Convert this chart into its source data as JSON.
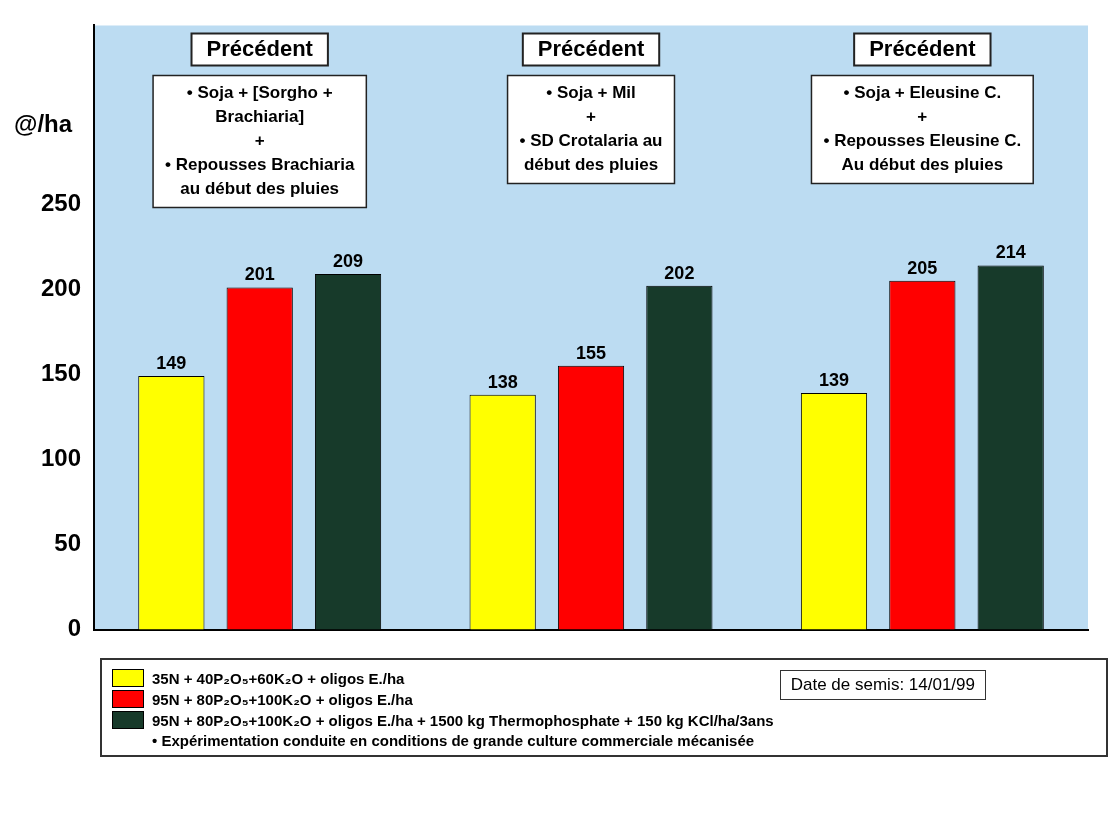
{
  "chart_data": {
    "type": "bar",
    "ylabel": "@/ha",
    "categories": [
      null,
      null,
      null
    ],
    "series": [
      {
        "name": "35N + 40P₂O₅+60K₂O + oligos E./ha",
        "color": "#ffff00",
        "values": [
          149,
          138,
          139
        ]
      },
      {
        "name": "95N + 80P₂O₅+100K₂O + oligos E./ha",
        "color": "#ff0000",
        "values": [
          201,
          155,
          205
        ]
      },
      {
        "name": "95N + 80P₂O₅+100K₂O + oligos E./ha + 1500 kg Thermophosphate + 150 kg KCl/ha/3ans",
        "color": "#173a2a",
        "values": [
          209,
          202,
          214
        ]
      }
    ],
    "ylim": [
      0,
      355
    ],
    "yticks": [
      0,
      50,
      100,
      150,
      200,
      250
    ],
    "grid": false,
    "legend": "bottom",
    "data_labels": true,
    "annotations": [
      "Précédent",
      "• Soja + [Sorgho +\nBrachiaria]\n+\n• Repousses Brachiaria\nau début des pluies",
      "Précédent",
      "• Soja + Mil\n+\n• SD Crotalaria au\ndébut des pluies",
      "Précédent",
      "• Soja + Eleusine C.\n+\n• Repousses Eleusine C.\nAu début des pluies",
      "Date de semis: 14/01/99",
      "• Expérimentation conduite en conditions de grande culture commerciale  mécanisée"
    ]
  }
}
